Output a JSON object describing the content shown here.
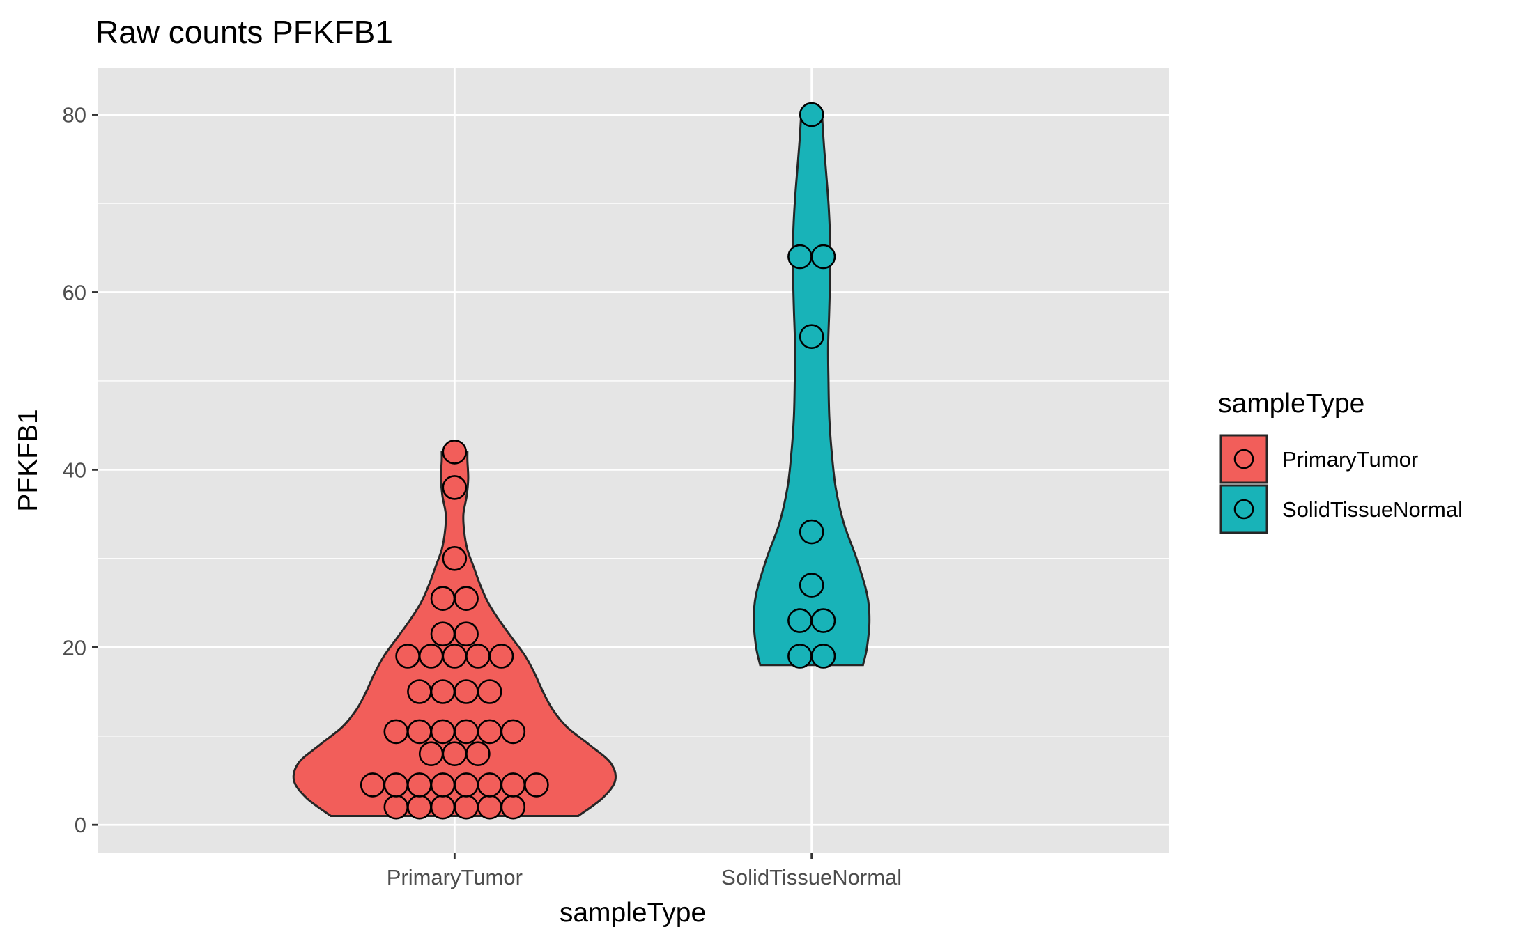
{
  "colors": {
    "panel": "#e5e5e5",
    "grid": "#ffffff",
    "outline": "#262626",
    "tick": "#333333"
  },
  "chart_data": {
    "type": "violin",
    "title": "Raw counts PFKFB1",
    "xlabel": "sampleType",
    "ylabel": "PFKFB1",
    "ylim": [
      -3.2,
      85.3
    ],
    "yticks": [
      0,
      20,
      40,
      60,
      80
    ],
    "grid": true,
    "legend": {
      "title": "sampleType",
      "position": "right",
      "entries": [
        "PrimaryTumor",
        "SolidTissueNormal"
      ]
    },
    "categories": [
      "PrimaryTumor",
      "SolidTissueNormal"
    ],
    "series": [
      {
        "name": "PrimaryTumor",
        "color": "#f25e5a",
        "range": [
          1,
          42
        ],
        "density": [
          [
            1,
            0.77
          ],
          [
            3,
            0.92
          ],
          [
            5,
            1.0
          ],
          [
            7,
            0.97
          ],
          [
            9,
            0.84
          ],
          [
            11,
            0.7
          ],
          [
            13,
            0.61
          ],
          [
            15,
            0.55
          ],
          [
            17,
            0.5
          ],
          [
            19,
            0.44
          ],
          [
            21,
            0.36
          ],
          [
            23,
            0.28
          ],
          [
            25,
            0.21
          ],
          [
            27,
            0.16
          ],
          [
            29,
            0.12
          ],
          [
            31,
            0.08
          ],
          [
            33,
            0.06
          ],
          [
            35,
            0.055
          ],
          [
            37,
            0.075
          ],
          [
            39,
            0.085
          ],
          [
            41,
            0.08
          ],
          [
            42,
            0.08
          ]
        ],
        "points": [
          {
            "y": 2,
            "n": 6
          },
          {
            "y": 4.5,
            "n": 8
          },
          {
            "y": 8,
            "n": 3
          },
          {
            "y": 10.5,
            "n": 6
          },
          {
            "y": 15,
            "n": 4
          },
          {
            "y": 19,
            "n": 5
          },
          {
            "y": 21.5,
            "n": 2
          },
          {
            "y": 25.5,
            "n": 2
          },
          {
            "y": 30,
            "n": 1
          },
          {
            "y": 38,
            "n": 1
          },
          {
            "y": 42,
            "n": 1
          }
        ]
      },
      {
        "name": "SolidTissueNormal",
        "color": "#18b3b8",
        "range": [
          18,
          80
        ],
        "density": [
          [
            18,
            0.32
          ],
          [
            20,
            0.345
          ],
          [
            23,
            0.36
          ],
          [
            26,
            0.345
          ],
          [
            30,
            0.28
          ],
          [
            34,
            0.2
          ],
          [
            38,
            0.15
          ],
          [
            42,
            0.125
          ],
          [
            46,
            0.11
          ],
          [
            50,
            0.105
          ],
          [
            54,
            0.103
          ],
          [
            58,
            0.11
          ],
          [
            62,
            0.115
          ],
          [
            66,
            0.115
          ],
          [
            70,
            0.105
          ],
          [
            74,
            0.088
          ],
          [
            77,
            0.075
          ],
          [
            80,
            0.065
          ]
        ],
        "points": [
          {
            "y": 19,
            "n": 2
          },
          {
            "y": 23,
            "n": 2
          },
          {
            "y": 27,
            "n": 1
          },
          {
            "y": 33,
            "n": 1
          },
          {
            "y": 55,
            "n": 1
          },
          {
            "y": 64,
            "n": 2
          },
          {
            "y": 80,
            "n": 1
          }
        ]
      }
    ]
  }
}
